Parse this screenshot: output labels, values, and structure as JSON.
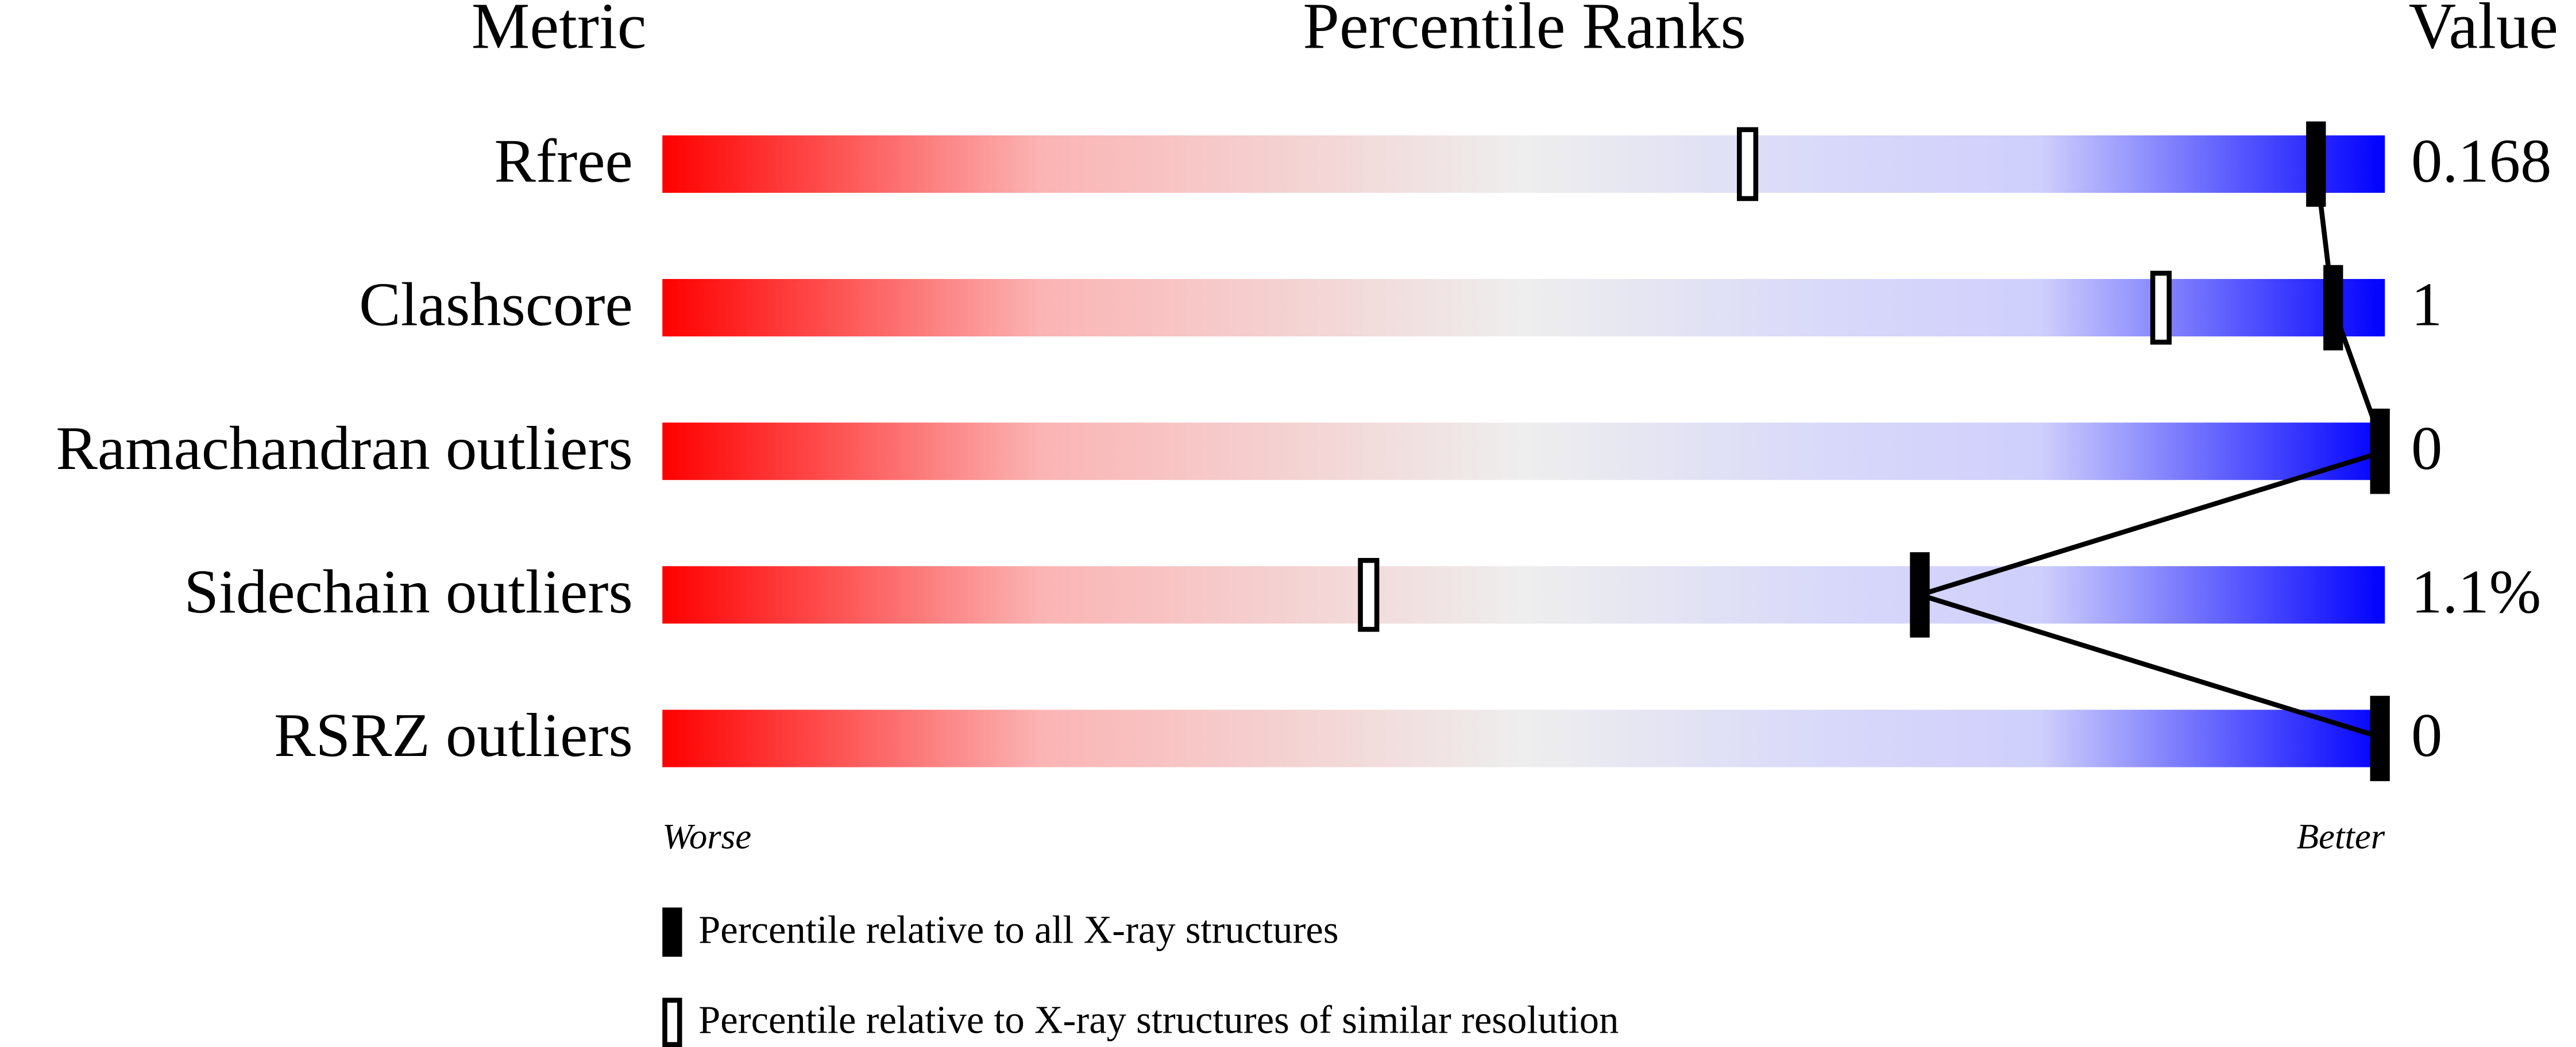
{
  "chart_data": {
    "type": "percentile-slider",
    "headers": [
      "Metric",
      "Percentile Ranks",
      "Value"
    ],
    "categories": [
      "Rfree",
      "Clashscore",
      "Ramachandran outliers",
      "Sidechain outliers",
      "RSRZ outliers"
    ],
    "metric_values": [
      "0.168",
      "1",
      "0",
      "1.1%",
      "0"
    ],
    "xlim": [
      0,
      100
    ],
    "series": [
      {
        "name": "Percentile relative to all X-ray structures",
        "color": "#000000",
        "values": [
          96,
          97,
          100,
          73,
          100
        ]
      },
      {
        "name": "Percentile relative to X-ray structures of similar resolution",
        "color": "#000000",
        "values": [
          63,
          87,
          null,
          41,
          null
        ]
      }
    ],
    "scale_labels": [
      "Worse",
      "Better"
    ]
  }
}
